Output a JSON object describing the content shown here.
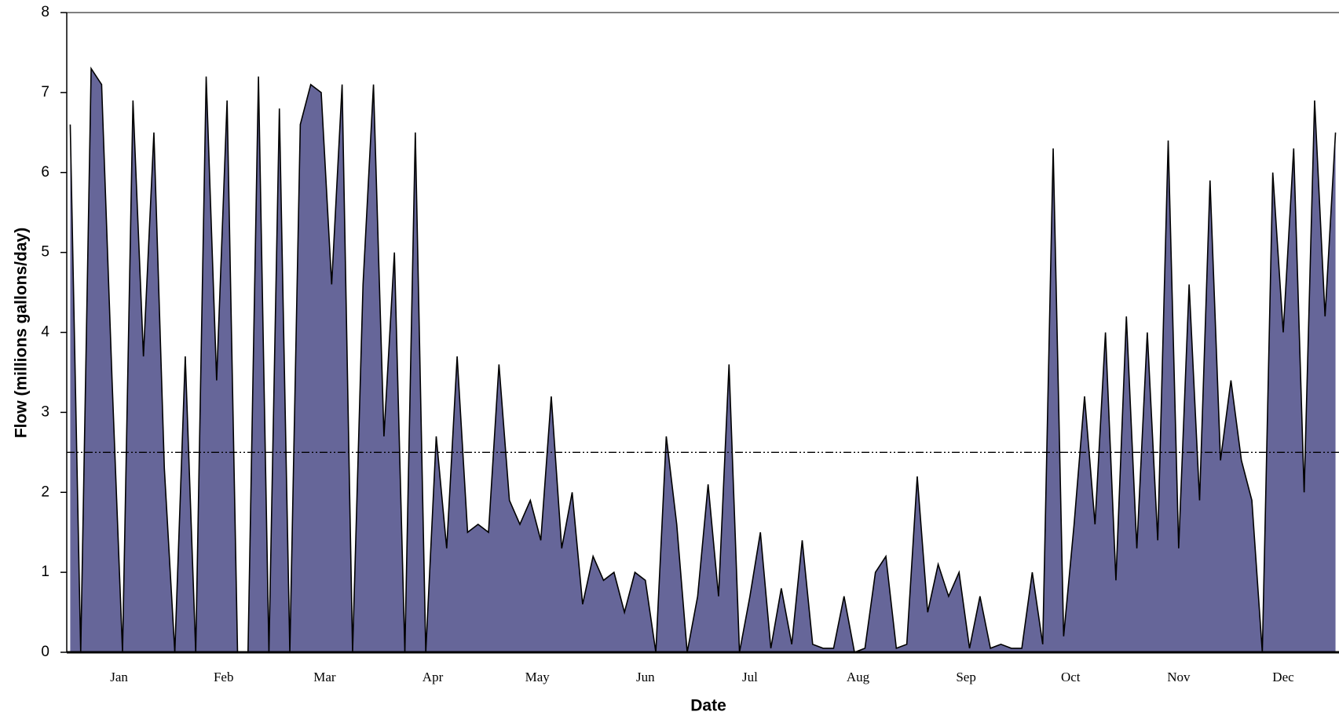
{
  "chart_data": {
    "type": "area",
    "x_label": "Date",
    "y_label": "Flow (millions gallons/day)",
    "x": [
      1,
      4,
      7,
      10,
      13,
      16,
      19,
      22,
      25,
      28,
      31,
      34,
      37,
      40,
      43,
      46,
      49,
      52,
      55,
      58,
      61,
      64,
      67,
      70,
      73,
      76,
      79,
      82,
      85,
      88,
      91,
      94,
      97,
      100,
      103,
      106,
      109,
      112,
      115,
      118,
      121,
      124,
      127,
      130,
      133,
      136,
      139,
      142,
      145,
      148,
      151,
      154,
      157,
      160,
      163,
      166,
      169,
      172,
      175,
      178,
      181,
      184,
      187,
      190,
      193,
      196,
      199,
      202,
      205,
      208,
      211,
      214,
      217,
      220,
      223,
      226,
      229,
      232,
      235,
      238,
      241,
      244,
      247,
      250,
      253,
      256,
      259,
      262,
      265,
      268,
      271,
      274,
      277,
      280,
      283,
      286,
      289,
      292,
      295,
      298,
      301,
      304,
      307,
      310,
      313,
      316,
      319,
      322,
      325,
      328,
      331,
      334,
      337,
      340,
      343,
      346,
      349,
      352,
      355,
      358,
      361,
      364
    ],
    "values": [
      6.6,
      0,
      7.3,
      7.1,
      3.4,
      0,
      6.9,
      3.7,
      6.5,
      2.3,
      0,
      3.7,
      0,
      7.2,
      3.4,
      6.9,
      0,
      0,
      7.2,
      0,
      6.8,
      0,
      6.6,
      7.1,
      7.0,
      4.6,
      7.1,
      0,
      4.6,
      7.1,
      2.7,
      5.0,
      0,
      6.5,
      0,
      2.7,
      1.3,
      3.7,
      1.5,
      1.6,
      1.5,
      3.6,
      1.9,
      1.6,
      1.9,
      1.4,
      3.2,
      1.3,
      2.0,
      0.6,
      1.2,
      0.9,
      1.0,
      0.5,
      1.0,
      0.9,
      0,
      2.7,
      1.6,
      0,
      0.7,
      2.1,
      0.7,
      3.6,
      0,
      0.7,
      1.5,
      0.05,
      0.8,
      0.1,
      1.4,
      0.1,
      0.05,
      0.05,
      0.7,
      0,
      0.05,
      1.0,
      1.2,
      0.05,
      0.1,
      2.2,
      0.5,
      1.1,
      0.7,
      1.0,
      0.05,
      0.7,
      0.05,
      0.1,
      0.05,
      0.05,
      1.0,
      0.1,
      6.3,
      0.2,
      1.6,
      3.2,
      1.6,
      4.0,
      0.9,
      4.2,
      1.3,
      4.0,
      1.4,
      6.4,
      1.3,
      4.6,
      1.9,
      5.9,
      2.4,
      3.4,
      2.4,
      1.9,
      0,
      6.0,
      4.0,
      6.3,
      2.0,
      6.9,
      4.2,
      6.5
    ],
    "color": "#666699",
    "reference_line": 2.5,
    "xlim": [
      0,
      365
    ],
    "xticks": [
      {
        "value": 15,
        "label": "Jan"
      },
      {
        "value": 45,
        "label": "Feb"
      },
      {
        "value": 74,
        "label": "Mar"
      },
      {
        "value": 105,
        "label": "Apr"
      },
      {
        "value": 135,
        "label": "May"
      },
      {
        "value": 166,
        "label": "Jun"
      },
      {
        "value": 196,
        "label": "Jul"
      },
      {
        "value": 227,
        "label": "Aug"
      },
      {
        "value": 258,
        "label": "Sep"
      },
      {
        "value": 288,
        "label": "Oct"
      },
      {
        "value": 319,
        "label": "Nov"
      },
      {
        "value": 349,
        "label": "Dec"
      }
    ],
    "ylim": [
      0,
      8
    ],
    "yticks": [
      0,
      1,
      2,
      3,
      4,
      5,
      6,
      7,
      8
    ]
  }
}
